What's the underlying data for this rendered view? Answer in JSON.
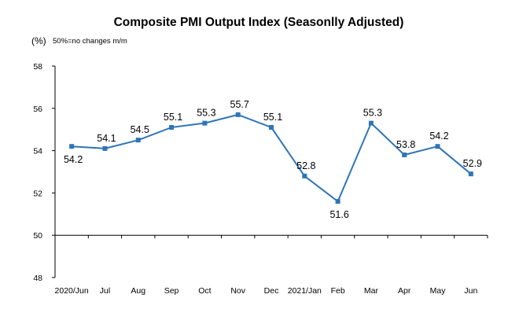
{
  "chart_data": {
    "type": "line",
    "title": "Composite PMI Output Index (Seasonlly Adjusted)",
    "unit_label": "(%)",
    "note": "50%=no changes  m/m",
    "xlabel": "",
    "ylabel": "",
    "categories": [
      "2020/Jun",
      "Jul",
      "Aug",
      "Sep",
      "Oct",
      "Nov",
      "Dec",
      "2021/Jan",
      "Feb",
      "Mar",
      "Apr",
      "May",
      "Jun"
    ],
    "series": [
      {
        "values": [
          54.2,
          54.1,
          54.5,
          55.1,
          55.3,
          55.7,
          55.1,
          52.8,
          51.6,
          55.3,
          53.8,
          54.2,
          52.9
        ]
      }
    ],
    "data_labels": [
      "54.2",
      "54.1",
      "54.5",
      "55.1",
      "55.3",
      "55.7",
      "55.1",
      "52.8",
      "51.6",
      "55.3",
      "53.8",
      "54.2",
      "52.9"
    ],
    "ylim": [
      48,
      58
    ],
    "yticks": [
      48,
      50,
      52,
      54,
      56,
      58
    ],
    "ytick_labels": [
      "48",
      "50",
      "52",
      "54",
      "56",
      "58"
    ],
    "reference_line": 50,
    "grid": false,
    "legend": "none",
    "colors": {
      "line": "#2E75B6",
      "marker": "#2E75B6",
      "axis": "#000000",
      "reference": "#000000"
    }
  }
}
